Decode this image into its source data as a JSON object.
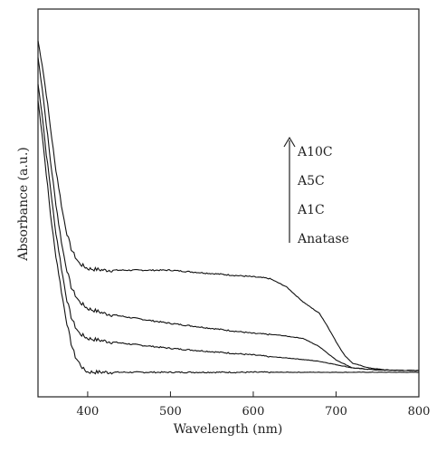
{
  "chart_data": {
    "type": "line",
    "title": "",
    "xlabel": "Wavelength (nm)",
    "ylabel": "Absorbance (a.u.)",
    "xlim": [
      340,
      800
    ],
    "ylim": [
      0,
      1
    ],
    "xticks": [
      400,
      500,
      600,
      700,
      800
    ],
    "y_tick_labels_shown": false,
    "grid": false,
    "legend": {
      "placement": "top-right",
      "style": "arrow-ordered",
      "entries_top_to_bottom": [
        "A10C",
        "A5C",
        "A1C",
        "Anatase"
      ]
    },
    "series": [
      {
        "name": "Anatase",
        "x": [
          340,
          345,
          350,
          355,
          360,
          365,
          370,
          375,
          380,
          385,
          390,
          395,
          400,
          420,
          450,
          500,
          550,
          600,
          650,
          700,
          750,
          800
        ],
        "y": [
          0.82,
          0.72,
          0.6,
          0.48,
          0.38,
          0.3,
          0.22,
          0.15,
          0.09,
          0.05,
          0.03,
          0.012,
          0.004,
          0.003,
          0.003,
          0.003,
          0.003,
          0.003,
          0.003,
          0.003,
          0.003,
          0.003
        ]
      },
      {
        "name": "A1C",
        "x": [
          340,
          345,
          350,
          355,
          360,
          365,
          370,
          375,
          380,
          385,
          390,
          400,
          420,
          450,
          500,
          550,
          600,
          620,
          650,
          680,
          700,
          720,
          750,
          800
        ],
        "y": [
          0.87,
          0.78,
          0.66,
          0.56,
          0.45,
          0.37,
          0.29,
          0.22,
          0.17,
          0.14,
          0.12,
          0.105,
          0.097,
          0.088,
          0.075,
          0.065,
          0.055,
          0.05,
          0.044,
          0.036,
          0.026,
          0.016,
          0.01,
          0.008
        ]
      },
      {
        "name": "A5C",
        "x": [
          340,
          345,
          350,
          355,
          360,
          365,
          370,
          375,
          380,
          385,
          390,
          400,
          420,
          450,
          500,
          550,
          600,
          630,
          660,
          680,
          700,
          720,
          750,
          800
        ],
        "y": [
          0.95,
          0.86,
          0.75,
          0.64,
          0.54,
          0.45,
          0.37,
          0.31,
          0.26,
          0.235,
          0.215,
          0.195,
          0.18,
          0.168,
          0.15,
          0.135,
          0.12,
          0.115,
          0.105,
          0.08,
          0.04,
          0.016,
          0.01,
          0.008
        ]
      },
      {
        "name": "A10C",
        "x": [
          340,
          345,
          350,
          355,
          360,
          365,
          370,
          375,
          380,
          385,
          390,
          400,
          420,
          450,
          500,
          550,
          600,
          620,
          640,
          660,
          680,
          690,
          700,
          710,
          720,
          740,
          760,
          800
        ],
        "y": [
          1.0,
          0.93,
          0.84,
          0.74,
          0.64,
          0.56,
          0.48,
          0.42,
          0.375,
          0.35,
          0.33,
          0.315,
          0.31,
          0.31,
          0.31,
          0.3,
          0.29,
          0.285,
          0.26,
          0.215,
          0.18,
          0.14,
          0.095,
          0.055,
          0.03,
          0.016,
          0.01,
          0.008
        ]
      }
    ]
  }
}
